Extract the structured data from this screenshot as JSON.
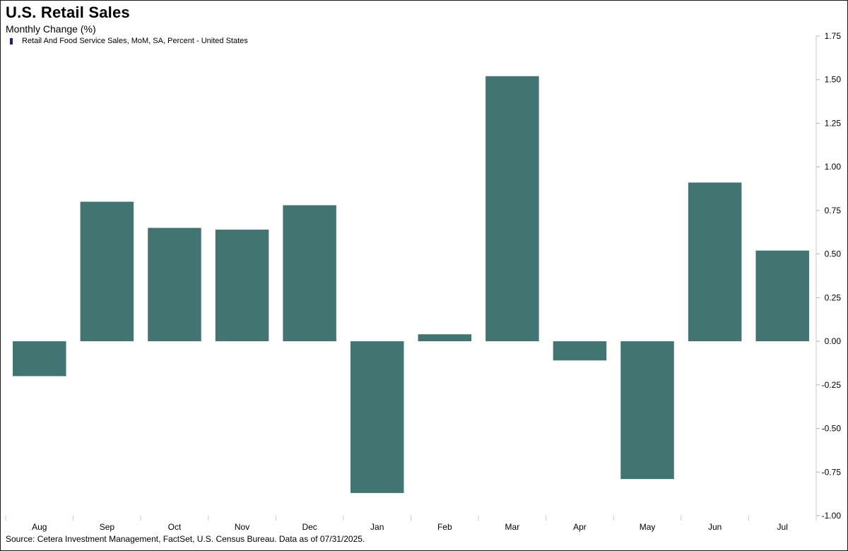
{
  "chart_data": {
    "type": "bar",
    "title": "U.S. Retail Sales",
    "subtitle": "Monthly Change (%)",
    "legend": [
      {
        "name": "Retail And Food Service Sales, MoM, SA, Percent - United States",
        "color": "#2e1a6e"
      }
    ],
    "categories": [
      "Aug",
      "Sep",
      "Oct",
      "Nov",
      "Dec",
      "Jan",
      "Feb",
      "Mar",
      "Apr",
      "May",
      "Jun",
      "Jul"
    ],
    "series": [
      {
        "name": "Retail And Food Service Sales, MoM, SA, Percent - United States",
        "values": [
          -0.2,
          0.8,
          0.65,
          0.64,
          0.78,
          -0.87,
          0.04,
          1.52,
          -0.11,
          -0.79,
          0.91,
          0.52
        ]
      }
    ],
    "ylim": [
      -1.0,
      1.75
    ],
    "yticks": [
      "1.75",
      "1.50",
      "1.25",
      "1.00",
      "0.75",
      "0.50",
      "0.25",
      "0.00",
      "-0.25",
      "-0.50",
      "-0.75",
      "-1.00"
    ],
    "y_axis_side": "right",
    "grid": false,
    "bar_color": "#427471",
    "source": "Source: Cetera Investment Management, FactSet, U.S. Census Bureau. Data as of 07/31/2025."
  }
}
